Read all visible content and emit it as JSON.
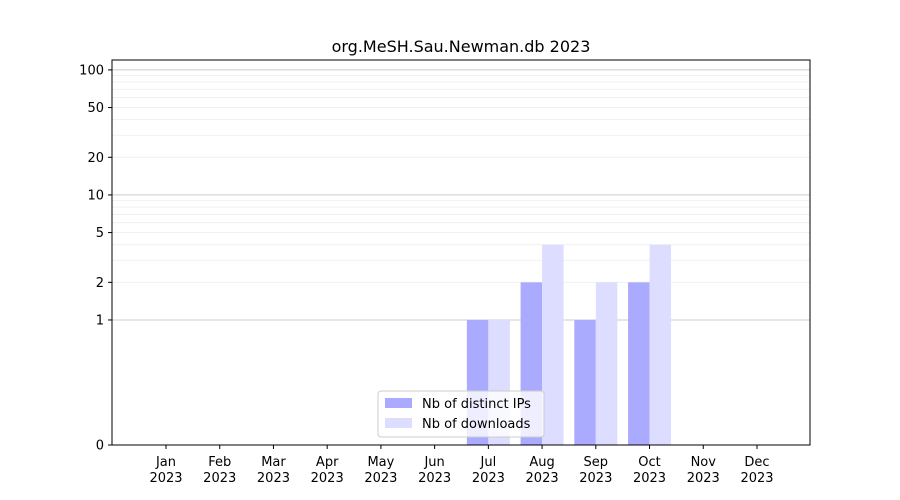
{
  "chart_data": {
    "type": "bar",
    "title": "org.MeSH.Sau.Newman.db 2023",
    "xlabel": "",
    "ylabel": "",
    "categories": [
      [
        "Jan",
        "2023"
      ],
      [
        "Feb",
        "2023"
      ],
      [
        "Mar",
        "2023"
      ],
      [
        "Apr",
        "2023"
      ],
      [
        "May",
        "2023"
      ],
      [
        "Jun",
        "2023"
      ],
      [
        "Jul",
        "2023"
      ],
      [
        "Aug",
        "2023"
      ],
      [
        "Sep",
        "2023"
      ],
      [
        "Oct",
        "2023"
      ],
      [
        "Nov",
        "2023"
      ],
      [
        "Dec",
        "2023"
      ]
    ],
    "series": [
      {
        "name": "Nb of distinct IPs",
        "color": "#aaaaff",
        "values": [
          0,
          0,
          0,
          0,
          0,
          0,
          1,
          2,
          1,
          2,
          0,
          0
        ]
      },
      {
        "name": "Nb of downloads",
        "color": "#ddddff",
        "values": [
          0,
          0,
          0,
          0,
          0,
          0,
          1,
          4,
          2,
          4,
          0,
          0
        ]
      }
    ],
    "y_scale": "symlog",
    "ylim": [
      0,
      120
    ],
    "y_ticks": [
      0,
      1,
      2,
      5,
      10,
      20,
      50,
      100
    ],
    "grid": true,
    "legend_position": "lower center"
  }
}
